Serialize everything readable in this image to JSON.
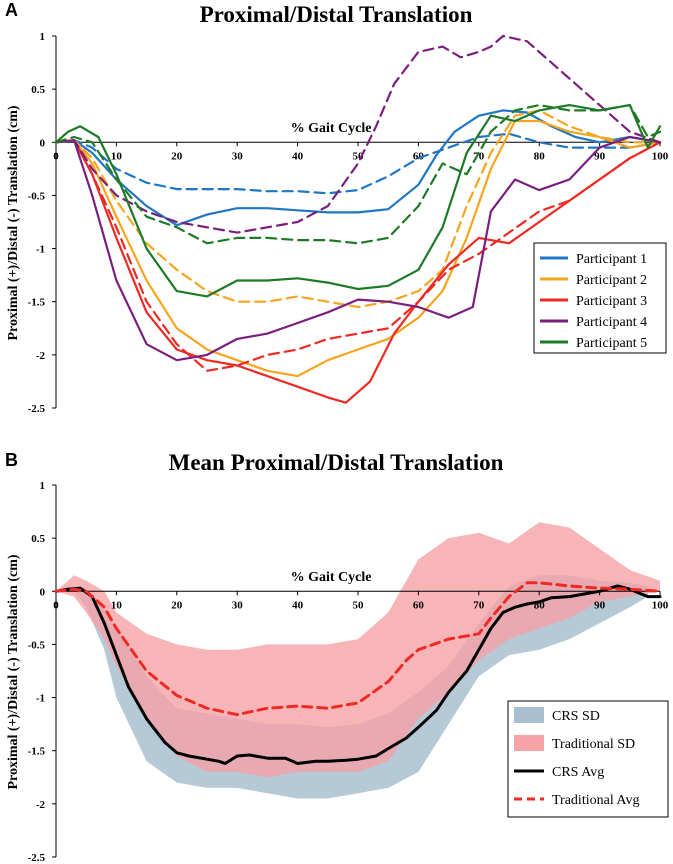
{
  "chart_data": [
    {
      "type": "line",
      "panel": "A",
      "title": "Proximal/Distal Translation",
      "xlabel": "% Gait Cycle",
      "ylabel": "Proximal (+)/Distal (-) Translation (cm)",
      "xlim": [
        0,
        100
      ],
      "ylim": [
        -2.5,
        1
      ],
      "yticks": [
        1,
        0.5,
        0,
        -0.5,
        -1,
        -1.5,
        -2,
        -2.5
      ],
      "yticklabels": [
        "1",
        "0.5",
        "0",
        "-0.5",
        "-1",
        "-1.5",
        "-2",
        "-2.5"
      ],
      "xticks": [
        0,
        10,
        20,
        30,
        40,
        50,
        60,
        70,
        80,
        90,
        100
      ],
      "xticklabels": [
        "0",
        "10",
        "20",
        "30",
        "40",
        "50",
        "60",
        "70",
        "80",
        "90",
        "100"
      ],
      "legend_position": "right",
      "note": "Solid and dashed line per participant (two conditions); legend shows the participant colour.",
      "series": [
        {
          "name": "Participant 1",
          "color": "#1f77c4",
          "style": "solid",
          "x": [
            0,
            3,
            6,
            10,
            15,
            20,
            25,
            30,
            35,
            40,
            45,
            50,
            55,
            60,
            63,
            66,
            70,
            74,
            78,
            82,
            86,
            90,
            95,
            100
          ],
          "y": [
            0,
            0.02,
            -0.1,
            -0.35,
            -0.6,
            -0.78,
            -0.68,
            -0.62,
            -0.62,
            -0.64,
            -0.66,
            -0.66,
            -0.63,
            -0.4,
            -0.12,
            0.1,
            0.25,
            0.3,
            0.28,
            0.15,
            0.05,
            0.0,
            0.05,
            0.0
          ]
        },
        {
          "name": "Participant 1",
          "color": "#1f77c4",
          "style": "dashed",
          "x": [
            0,
            3,
            6,
            10,
            15,
            20,
            25,
            30,
            35,
            40,
            45,
            50,
            55,
            60,
            65,
            70,
            75,
            80,
            85,
            90,
            95,
            100
          ],
          "y": [
            0,
            0.02,
            -0.05,
            -0.25,
            -0.38,
            -0.44,
            -0.44,
            -0.44,
            -0.46,
            -0.46,
            -0.48,
            -0.45,
            -0.32,
            -0.15,
            -0.05,
            0.05,
            0.08,
            0.0,
            -0.05,
            -0.05,
            -0.05,
            0.0
          ]
        },
        {
          "name": "Participant 2",
          "color": "#f5a51f",
          "style": "solid",
          "x": [
            0,
            3,
            6,
            10,
            15,
            20,
            25,
            30,
            35,
            40,
            45,
            50,
            55,
            60,
            64,
            68,
            72,
            76,
            80,
            85,
            90,
            95,
            100
          ],
          "y": [
            0,
            0.02,
            -0.2,
            -0.7,
            -1.3,
            -1.75,
            -1.95,
            -2.05,
            -2.15,
            -2.2,
            -2.05,
            -1.95,
            -1.85,
            -1.65,
            -1.4,
            -0.9,
            -0.25,
            0.2,
            0.2,
            0.1,
            0.05,
            -0.05,
            0.0
          ]
        },
        {
          "name": "Participant 2",
          "color": "#f5a51f",
          "style": "dashed",
          "x": [
            0,
            3,
            6,
            10,
            15,
            20,
            25,
            30,
            35,
            40,
            45,
            50,
            55,
            60,
            64,
            68,
            72,
            76,
            80,
            85,
            90,
            95,
            100
          ],
          "y": [
            0,
            0.02,
            -0.15,
            -0.55,
            -0.95,
            -1.2,
            -1.4,
            -1.5,
            -1.5,
            -1.45,
            -1.5,
            -1.55,
            -1.5,
            -1.4,
            -1.2,
            -0.6,
            -0.1,
            0.25,
            0.3,
            0.15,
            0.05,
            0.0,
            0.0
          ]
        },
        {
          "name": "Participant 3",
          "color": "#ee2a24",
          "style": "solid",
          "x": [
            0,
            3,
            6,
            10,
            15,
            20,
            25,
            30,
            35,
            40,
            45,
            48,
            52,
            56,
            60,
            65,
            70,
            75,
            80,
            85,
            90,
            95,
            100
          ],
          "y": [
            0,
            0.02,
            -0.3,
            -0.9,
            -1.6,
            -1.95,
            -2.05,
            -2.1,
            -2.2,
            -2.3,
            -2.4,
            -2.45,
            -2.25,
            -1.8,
            -1.5,
            -1.15,
            -0.9,
            -0.95,
            -0.75,
            -0.55,
            -0.35,
            -0.15,
            0.0
          ]
        },
        {
          "name": "Participant 3",
          "color": "#ee2a24",
          "style": "dashed",
          "x": [
            0,
            3,
            6,
            10,
            15,
            20,
            25,
            30,
            35,
            40,
            45,
            50,
            55,
            60,
            65,
            70,
            75,
            80,
            85,
            90,
            95,
            100
          ],
          "y": [
            0,
            0.02,
            -0.3,
            -0.8,
            -1.5,
            -1.9,
            -2.15,
            -2.1,
            -2.0,
            -1.95,
            -1.85,
            -1.8,
            -1.75,
            -1.5,
            -1.2,
            -1.05,
            -0.85,
            -0.65,
            -0.55,
            -0.35,
            -0.15,
            0.0
          ]
        },
        {
          "name": "Participant 4",
          "color": "#7b1f7e",
          "style": "solid",
          "x": [
            0,
            3,
            6,
            10,
            15,
            20,
            25,
            30,
            35,
            40,
            45,
            50,
            55,
            60,
            65,
            69,
            72,
            76,
            80,
            85,
            90,
            95,
            100
          ],
          "y": [
            0,
            0.02,
            -0.5,
            -1.3,
            -1.9,
            -2.05,
            -2.0,
            -1.85,
            -1.8,
            -1.7,
            -1.6,
            -1.48,
            -1.5,
            -1.55,
            -1.65,
            -1.55,
            -0.65,
            -0.35,
            -0.45,
            -0.35,
            -0.05,
            0.05,
            0.0
          ]
        },
        {
          "name": "Participant 4",
          "color": "#7b1f7e",
          "style": "dashed",
          "x": [
            0,
            3,
            6,
            10,
            15,
            20,
            25,
            30,
            35,
            40,
            45,
            50,
            53,
            56,
            60,
            64,
            67,
            70,
            72,
            74,
            78,
            82,
            86,
            90,
            95,
            100
          ],
          "y": [
            0,
            0.02,
            -0.25,
            -0.5,
            -0.65,
            -0.75,
            -0.8,
            -0.85,
            -0.8,
            -0.75,
            -0.6,
            -0.2,
            0.15,
            0.55,
            0.85,
            0.9,
            0.8,
            0.85,
            0.9,
            1.0,
            0.95,
            0.75,
            0.55,
            0.35,
            0.1,
            0.0
          ]
        },
        {
          "name": "Participant 5",
          "color": "#1e7a26",
          "style": "solid",
          "x": [
            0,
            2,
            4,
            7,
            10,
            15,
            20,
            25,
            30,
            35,
            40,
            45,
            50,
            55,
            60,
            64,
            68,
            72,
            76,
            80,
            85,
            90,
            95,
            98,
            100
          ],
          "y": [
            0,
            0.1,
            0.15,
            0.05,
            -0.3,
            -1.0,
            -1.4,
            -1.45,
            -1.3,
            -1.3,
            -1.28,
            -1.32,
            -1.38,
            -1.35,
            -1.2,
            -0.8,
            -0.1,
            0.25,
            0.2,
            0.3,
            0.35,
            0.3,
            0.35,
            -0.05,
            0.15
          ]
        },
        {
          "name": "Participant 5",
          "color": "#1e7a26",
          "style": "dashed",
          "x": [
            0,
            3,
            6,
            10,
            15,
            20,
            25,
            30,
            35,
            40,
            45,
            50,
            55,
            60,
            64,
            68,
            70,
            72,
            76,
            80,
            85,
            90,
            95,
            98,
            100
          ],
          "y": [
            0,
            0.05,
            0.0,
            -0.35,
            -0.7,
            -0.8,
            -0.95,
            -0.9,
            -0.9,
            -0.92,
            -0.92,
            -0.95,
            -0.9,
            -0.6,
            -0.2,
            -0.3,
            -0.1,
            0.1,
            0.3,
            0.35,
            0.3,
            0.3,
            0.35,
            0.05,
            0.1
          ]
        }
      ],
      "legend": [
        {
          "label": "Participant 1",
          "color": "#1f77c4"
        },
        {
          "label": "Participant 2",
          "color": "#f5a51f"
        },
        {
          "label": "Participant 3",
          "color": "#ee2a24"
        },
        {
          "label": "Participant 4",
          "color": "#7b1f7e"
        },
        {
          "label": "Participant 5",
          "color": "#1e7a26"
        }
      ]
    },
    {
      "type": "area",
      "panel": "B",
      "title": "Mean Proximal/Distal Translation",
      "xlabel": "% Gait Cycle",
      "ylabel": "Proximal (+)/Distal (-) Translation (cm)",
      "xlim": [
        0,
        100
      ],
      "ylim": [
        -2.5,
        1
      ],
      "yticks": [
        1,
        0.5,
        0,
        -0.5,
        -1,
        -1.5,
        -2,
        -2.5
      ],
      "yticklabels": [
        "1",
        "0.5",
        "0",
        "-0.5",
        "-1",
        "-1.5",
        "-2",
        "-2.5"
      ],
      "xticks": [
        0,
        10,
        20,
        30,
        40,
        50,
        60,
        70,
        80,
        90,
        100
      ],
      "xticklabels": [
        "0",
        "10",
        "20",
        "30",
        "40",
        "50",
        "60",
        "70",
        "80",
        "90",
        "100"
      ],
      "legend_position": "bottom-right",
      "bands": [
        {
          "name": "CRS SD",
          "color": "#a9bfd0",
          "x": [
            0,
            3,
            5,
            8,
            10,
            15,
            20,
            25,
            30,
            35,
            40,
            45,
            50,
            55,
            60,
            65,
            70,
            75,
            80,
            85,
            90,
            95,
            98
          ],
          "upper": [
            0,
            0.05,
            0.0,
            -0.15,
            -0.35,
            -0.8,
            -1.1,
            -1.15,
            -1.2,
            -1.25,
            -1.25,
            -1.28,
            -1.25,
            -1.15,
            -0.95,
            -0.7,
            -0.3,
            0.05,
            0.15,
            0.15,
            0.1,
            0.08,
            0.05
          ],
          "lower": [
            0,
            0.0,
            -0.15,
            -0.55,
            -1.0,
            -1.6,
            -1.8,
            -1.85,
            -1.85,
            -1.9,
            -1.95,
            -1.95,
            -1.9,
            -1.85,
            -1.7,
            -1.25,
            -0.8,
            -0.6,
            -0.55,
            -0.45,
            -0.3,
            -0.15,
            -0.05
          ]
        },
        {
          "name": "Traditional SD",
          "color": "#f5a3a6",
          "x": [
            0,
            3,
            5,
            8,
            10,
            15,
            20,
            25,
            30,
            35,
            40,
            45,
            50,
            55,
            60,
            65,
            70,
            75,
            80,
            85,
            90,
            95,
            100
          ],
          "upper": [
            0,
            0.15,
            0.1,
            0.0,
            -0.2,
            -0.4,
            -0.5,
            -0.55,
            -0.55,
            -0.5,
            -0.5,
            -0.5,
            -0.45,
            -0.2,
            0.3,
            0.5,
            0.55,
            0.45,
            0.65,
            0.6,
            0.4,
            0.2,
            0.1
          ],
          "lower": [
            0,
            -0.05,
            -0.2,
            -0.45,
            -0.7,
            -1.2,
            -1.55,
            -1.7,
            -1.7,
            -1.75,
            -1.7,
            -1.7,
            -1.7,
            -1.6,
            -1.2,
            -0.95,
            -0.65,
            -0.45,
            -0.35,
            -0.25,
            -0.1,
            -0.05,
            0.0
          ]
        }
      ],
      "series": [
        {
          "name": "CRS Avg",
          "color": "#000000",
          "style": "solid",
          "x": [
            0,
            2,
            4,
            6,
            8,
            10,
            12,
            15,
            18,
            20,
            22,
            25,
            27,
            28,
            30,
            32,
            35,
            38,
            40,
            43,
            45,
            48,
            50,
            53,
            55,
            58,
            60,
            63,
            65,
            68,
            70,
            72,
            74,
            76,
            78,
            80,
            82,
            85,
            88,
            90,
            93,
            95,
            98,
            100
          ],
          "y": [
            0,
            0.02,
            0.03,
            -0.05,
            -0.3,
            -0.6,
            -0.9,
            -1.2,
            -1.42,
            -1.52,
            -1.55,
            -1.58,
            -1.6,
            -1.62,
            -1.55,
            -1.54,
            -1.57,
            -1.57,
            -1.62,
            -1.6,
            -1.6,
            -1.59,
            -1.58,
            -1.55,
            -1.48,
            -1.38,
            -1.28,
            -1.12,
            -0.95,
            -0.75,
            -0.55,
            -0.35,
            -0.2,
            -0.15,
            -0.12,
            -0.1,
            -0.06,
            -0.05,
            -0.02,
            0.0,
            0.05,
            0.02,
            -0.05,
            -0.05
          ]
        },
        {
          "name": "Traditional Avg",
          "color": "#ee2a24",
          "style": "dashed",
          "x": [
            0,
            3,
            5,
            8,
            10,
            15,
            20,
            25,
            30,
            35,
            40,
            45,
            50,
            55,
            58,
            60,
            65,
            70,
            72,
            75,
            78,
            80,
            85,
            90,
            95,
            100
          ],
          "y": [
            0,
            0.02,
            0.0,
            -0.15,
            -0.35,
            -0.75,
            -0.98,
            -1.1,
            -1.16,
            -1.1,
            -1.08,
            -1.1,
            -1.05,
            -0.85,
            -0.65,
            -0.55,
            -0.45,
            -0.4,
            -0.25,
            -0.05,
            0.08,
            0.08,
            0.05,
            0.03,
            0.02,
            0.0
          ]
        }
      ],
      "legend": [
        {
          "label": "CRS SD",
          "color": "#a9bfd0",
          "kind": "fill"
        },
        {
          "label": "Traditional SD",
          "color": "#f5a3a6",
          "kind": "fill"
        },
        {
          "label": "CRS Avg",
          "color": "#000000",
          "kind": "solid"
        },
        {
          "label": "Traditional Avg",
          "color": "#ee2a24",
          "kind": "dashed"
        }
      ]
    }
  ]
}
